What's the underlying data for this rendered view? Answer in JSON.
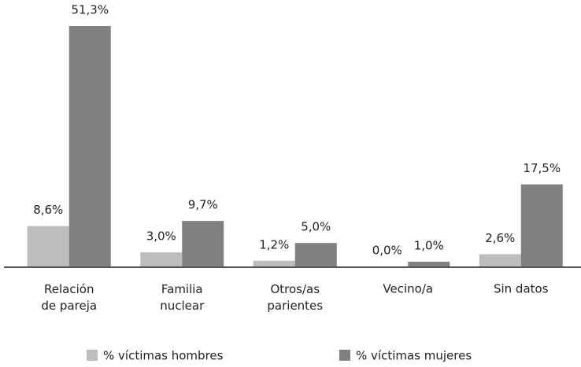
{
  "chart_data": {
    "type": "bar",
    "categories": [
      "Relación\nde pareja",
      "Familia\nnuclear",
      "Otros/as\nparientes",
      "Vecino/a",
      "Sin datos"
    ],
    "series": [
      {
        "name": "% víctimas hombres",
        "color": "#bdbdbd",
        "values": [
          8.6,
          3.0,
          1.2,
          0.0,
          2.6
        ],
        "value_labels": [
          "8,6%",
          "3,0%",
          "1,2%",
          "0,0%",
          "2,6%"
        ]
      },
      {
        "name": "% víctimas mujeres",
        "color": "#808080",
        "values": [
          51.3,
          9.7,
          5.0,
          1.0,
          17.5
        ],
        "value_labels": [
          "51,3%",
          "9,7%",
          "5,0%",
          "1,0%",
          "17,5%"
        ]
      }
    ]
  }
}
